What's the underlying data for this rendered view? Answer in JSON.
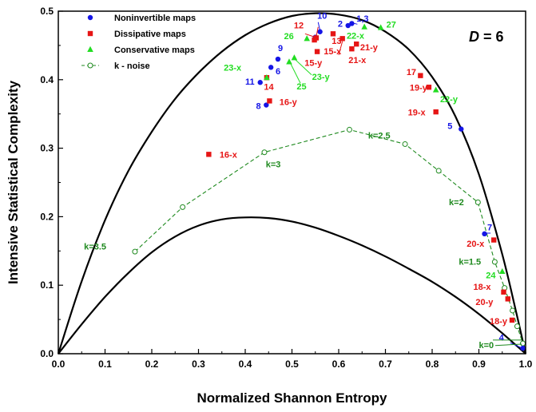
{
  "chart_data": {
    "type": "scatter",
    "xlabel": "Normalized Shannon Entropy",
    "ylabel": "Intensive Statistical Complexity",
    "xlim": [
      0,
      1
    ],
    "ylim": [
      0,
      0.5
    ],
    "xticks": [
      "0.0",
      "0.1",
      "0.2",
      "0.3",
      "0.4",
      "0.5",
      "0.6",
      "0.7",
      "0.8",
      "0.9",
      "1.0"
    ],
    "yticks": [
      "0.0",
      "0.1",
      "0.2",
      "0.3",
      "0.4",
      "0.5"
    ],
    "annotation_D": "D",
    "annotation_eq": " = 6",
    "grid": false,
    "legend_position": "top-left",
    "colors": {
      "noninvertible": "#1515e6",
      "dissipative": "#e61515",
      "conservative": "#22dd22",
      "knoise": "#1f8a1f",
      "bound": "#000000"
    },
    "upper_bound": [
      [
        0,
        0
      ],
      [
        0.05,
        0.106
      ],
      [
        0.1,
        0.195
      ],
      [
        0.15,
        0.267
      ],
      [
        0.2,
        0.324
      ],
      [
        0.25,
        0.372
      ],
      [
        0.3,
        0.41
      ],
      [
        0.35,
        0.441
      ],
      [
        0.4,
        0.465
      ],
      [
        0.45,
        0.482
      ],
      [
        0.5,
        0.493
      ],
      [
        0.55,
        0.497
      ],
      [
        0.6,
        0.495
      ],
      [
        0.65,
        0.487
      ],
      [
        0.7,
        0.47
      ],
      [
        0.75,
        0.444
      ],
      [
        0.8,
        0.404
      ],
      [
        0.85,
        0.346
      ],
      [
        0.9,
        0.262
      ],
      [
        0.95,
        0.145
      ],
      [
        0.98,
        0.06
      ],
      [
        1.0,
        0
      ]
    ],
    "lower_bound": [
      [
        0,
        0
      ],
      [
        0.05,
        0.043
      ],
      [
        0.1,
        0.083
      ],
      [
        0.15,
        0.118
      ],
      [
        0.2,
        0.148
      ],
      [
        0.25,
        0.171
      ],
      [
        0.3,
        0.187
      ],
      [
        0.35,
        0.196
      ],
      [
        0.4,
        0.199
      ],
      [
        0.45,
        0.198
      ],
      [
        0.5,
        0.193
      ],
      [
        0.55,
        0.184
      ],
      [
        0.6,
        0.172
      ],
      [
        0.65,
        0.158
      ],
      [
        0.7,
        0.142
      ],
      [
        0.75,
        0.124
      ],
      [
        0.8,
        0.105
      ],
      [
        0.85,
        0.083
      ],
      [
        0.9,
        0.058
      ],
      [
        0.95,
        0.03
      ],
      [
        1.0,
        0
      ]
    ],
    "series": [
      {
        "name": "Noninvertible maps",
        "marker": "circle",
        "values": [
          [
            0.62,
            0.479
          ],
          [
            0.628,
            0.482
          ],
          [
            0.56,
            0.47
          ],
          [
            0.55,
            0.462
          ],
          [
            0.47,
            0.43
          ],
          [
            0.455,
            0.418
          ],
          [
            0.432,
            0.396
          ],
          [
            0.445,
            0.363
          ],
          [
            0.862,
            0.328
          ],
          [
            0.912,
            0.175
          ],
          [
            0.994,
            0.008
          ]
        ]
      },
      {
        "name": "Dissipative maps",
        "marker": "square",
        "values": [
          [
            0.552,
            0.461
          ],
          [
            0.548,
            0.458
          ],
          [
            0.588,
            0.467
          ],
          [
            0.608,
            0.46
          ],
          [
            0.638,
            0.452
          ],
          [
            0.628,
            0.445
          ],
          [
            0.554,
            0.441
          ],
          [
            0.446,
            0.403
          ],
          [
            0.452,
            0.369
          ],
          [
            0.322,
            0.291
          ],
          [
            0.775,
            0.406
          ],
          [
            0.793,
            0.389
          ],
          [
            0.808,
            0.353
          ],
          [
            0.932,
            0.166
          ],
          [
            0.953,
            0.09
          ],
          [
            0.962,
            0.08
          ],
          [
            0.971,
            0.049
          ]
        ]
      },
      {
        "name": "Conservative maps",
        "marker": "triangle",
        "values": [
          [
            0.532,
            0.46
          ],
          [
            0.505,
            0.432
          ],
          [
            0.494,
            0.426
          ],
          [
            0.446,
            0.403
          ],
          [
            0.655,
            0.477
          ],
          [
            0.69,
            0.476
          ],
          [
            0.808,
            0.385
          ],
          [
            0.95,
            0.12
          ]
        ]
      },
      {
        "name": "k - noise",
        "marker": "open-circle",
        "values": [
          [
            0.164,
            0.149
          ],
          [
            0.266,
            0.214
          ],
          [
            0.441,
            0.294
          ],
          [
            0.623,
            0.327
          ],
          [
            0.742,
            0.306
          ],
          [
            0.814,
            0.267
          ],
          [
            0.898,
            0.221
          ],
          [
            0.934,
            0.134
          ],
          [
            0.955,
            0.096
          ],
          [
            0.972,
            0.063
          ],
          [
            0.982,
            0.04
          ],
          [
            0.994,
            0.015
          ]
        ]
      }
    ],
    "point_labels": [
      {
        "text": "1,3",
        "color": "noninvertible",
        "x": 0.638,
        "y": 0.485
      },
      {
        "text": "2",
        "color": "noninvertible",
        "x": 0.598,
        "y": 0.477
      },
      {
        "text": "10",
        "color": "noninvertible",
        "x": 0.554,
        "y": 0.489
      },
      {
        "text": "12",
        "color": "dissipative",
        "x": 0.504,
        "y": 0.475
      },
      {
        "text": "13",
        "color": "dissipative",
        "x": 0.585,
        "y": 0.452
      },
      {
        "text": "26",
        "color": "conservative",
        "x": 0.483,
        "y": 0.459
      },
      {
        "text": "22-x",
        "color": "conservative",
        "x": 0.617,
        "y": 0.46
      },
      {
        "text": "27",
        "color": "conservative",
        "x": 0.702,
        "y": 0.476
      },
      {
        "text": "21-y",
        "color": "dissipative",
        "x": 0.646,
        "y": 0.443
      },
      {
        "text": "15-x",
        "color": "dissipative",
        "x": 0.568,
        "y": 0.437
      },
      {
        "text": "15-y",
        "color": "dissipative",
        "x": 0.527,
        "y": 0.42
      },
      {
        "text": "21-x",
        "color": "dissipative",
        "x": 0.621,
        "y": 0.424
      },
      {
        "text": "23-x",
        "color": "conservative",
        "x": 0.354,
        "y": 0.413
      },
      {
        "text": "9",
        "color": "noninvertible",
        "x": 0.47,
        "y": 0.442
      },
      {
        "text": "6",
        "color": "noninvertible",
        "x": 0.465,
        "y": 0.408
      },
      {
        "text": "11",
        "color": "noninvertible",
        "x": 0.4,
        "y": 0.393
      },
      {
        "text": "14",
        "color": "dissipative",
        "x": 0.44,
        "y": 0.385
      },
      {
        "text": "25",
        "color": "conservative",
        "x": 0.51,
        "y": 0.386
      },
      {
        "text": "23-y",
        "color": "conservative",
        "x": 0.543,
        "y": 0.4
      },
      {
        "text": "16-y",
        "color": "dissipative",
        "x": 0.473,
        "y": 0.363
      },
      {
        "text": "8",
        "color": "noninvertible",
        "x": 0.423,
        "y": 0.357
      },
      {
        "text": "17",
        "color": "dissipative",
        "x": 0.745,
        "y": 0.407
      },
      {
        "text": "19-y",
        "color": "dissipative",
        "x": 0.752,
        "y": 0.384
      },
      {
        "text": "22-y",
        "color": "conservative",
        "x": 0.817,
        "y": 0.367
      },
      {
        "text": "19-x",
        "color": "dissipative",
        "x": 0.748,
        "y": 0.348
      },
      {
        "text": "5",
        "color": "noninvertible",
        "x": 0.833,
        "y": 0.328
      },
      {
        "text": "16-x",
        "color": "dissipative",
        "x": 0.345,
        "y": 0.286
      },
      {
        "text": "k=3",
        "color": "knoise",
        "x": 0.444,
        "y": 0.272
      },
      {
        "text": "k=2.5",
        "color": "knoise",
        "x": 0.663,
        "y": 0.314
      },
      {
        "text": "k=2",
        "color": "knoise",
        "x": 0.836,
        "y": 0.217
      },
      {
        "text": "k=3.5",
        "color": "knoise",
        "x": 0.055,
        "y": 0.152
      },
      {
        "text": "7",
        "color": "noninvertible",
        "x": 0.918,
        "y": 0.18
      },
      {
        "text": "20-x",
        "color": "dissipative",
        "x": 0.874,
        "y": 0.156
      },
      {
        "text": "k=1.5",
        "color": "knoise",
        "x": 0.857,
        "y": 0.13
      },
      {
        "text": "24",
        "color": "conservative",
        "x": 0.915,
        "y": 0.11
      },
      {
        "text": "18-x",
        "color": "dissipative",
        "x": 0.888,
        "y": 0.093
      },
      {
        "text": "20-y",
        "color": "dissipative",
        "x": 0.893,
        "y": 0.071
      },
      {
        "text": "18-y",
        "color": "dissipative",
        "x": 0.923,
        "y": 0.043
      },
      {
        "text": "4",
        "color": "noninvertible",
        "x": 0.943,
        "y": 0.019
      },
      {
        "text": "k=0",
        "color": "knoise",
        "x": 0.9,
        "y": 0.008
      }
    ]
  }
}
